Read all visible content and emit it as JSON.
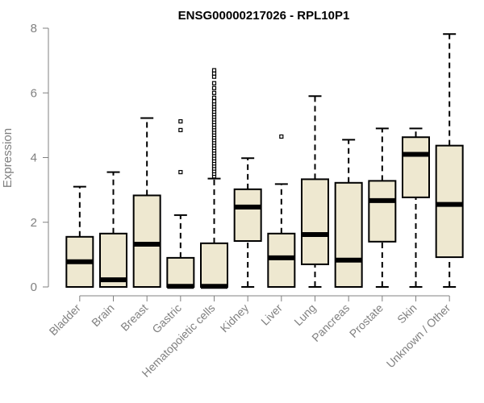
{
  "chart_data": {
    "type": "boxplot",
    "title": "ENSG00000217026 - RPL10P1",
    "xlabel": "",
    "ylabel": "Expression",
    "ylim": [
      0,
      8
    ],
    "yticks": [
      0,
      2,
      4,
      6,
      8
    ],
    "colors": {
      "box_fill": "#EEE8D0",
      "stroke": "#000000",
      "axis": "#808080"
    },
    "categories": [
      "Bladder",
      "Brain",
      "Breast",
      "Gastric",
      "Hematopoietic cells",
      "Kidney",
      "Liver",
      "Lung",
      "Pancreas",
      "Prostate",
      "Skin",
      "Unknown / Other"
    ],
    "boxes": [
      {
        "name": "Bladder",
        "min": 0,
        "q1": 0,
        "median": 0.78,
        "q3": 1.55,
        "max": 3.1,
        "outliers": []
      },
      {
        "name": "Brain",
        "min": 0,
        "q1": 0,
        "median": 0.22,
        "q3": 1.65,
        "max": 3.55,
        "outliers": []
      },
      {
        "name": "Breast",
        "min": 0,
        "q1": 0,
        "median": 1.32,
        "q3": 2.83,
        "max": 5.22,
        "outliers": []
      },
      {
        "name": "Gastric",
        "min": 0,
        "q1": 0,
        "median": 0.02,
        "q3": 0.9,
        "max": 2.22,
        "outliers": [
          3.55,
          4.85,
          5.12
        ]
      },
      {
        "name": "Hematopoietic cells",
        "min": 0,
        "q1": 0,
        "median": 0.02,
        "q3": 1.35,
        "max": 3.35,
        "outliers": [
          3.42,
          3.5,
          3.58,
          3.66,
          3.74,
          3.82,
          3.9,
          3.98,
          4.06,
          4.14,
          4.22,
          4.3,
          4.38,
          4.46,
          4.54,
          4.62,
          4.7,
          4.78,
          4.86,
          4.94,
          5.02,
          5.1,
          5.18,
          5.26,
          5.34,
          5.42,
          5.5,
          5.58,
          5.66,
          5.74,
          5.85,
          6.0,
          6.15,
          6.3,
          6.5,
          6.6,
          6.7
        ]
      },
      {
        "name": "Kidney",
        "min": 0,
        "q1": 1.42,
        "median": 2.47,
        "q3": 3.02,
        "max": 3.98,
        "outliers": []
      },
      {
        "name": "Liver",
        "min": 0,
        "q1": 0,
        "median": 0.9,
        "q3": 1.65,
        "max": 3.18,
        "outliers": [
          4.65
        ]
      },
      {
        "name": "Lung",
        "min": 0,
        "q1": 0.7,
        "median": 1.62,
        "q3": 3.33,
        "max": 5.9,
        "outliers": []
      },
      {
        "name": "Pancreas",
        "min": 0,
        "q1": 0,
        "median": 0.83,
        "q3": 3.22,
        "max": 4.55,
        "outliers": []
      },
      {
        "name": "Prostate",
        "min": 0,
        "q1": 1.4,
        "median": 2.67,
        "q3": 3.28,
        "max": 4.9,
        "outliers": []
      },
      {
        "name": "Skin",
        "min": 0,
        "q1": 2.77,
        "median": 4.1,
        "q3": 4.63,
        "max": 4.9,
        "outliers": []
      },
      {
        "name": "Unknown / Other",
        "min": 0,
        "q1": 0.92,
        "median": 2.55,
        "q3": 4.37,
        "max": 7.82,
        "outliers": []
      }
    ]
  }
}
